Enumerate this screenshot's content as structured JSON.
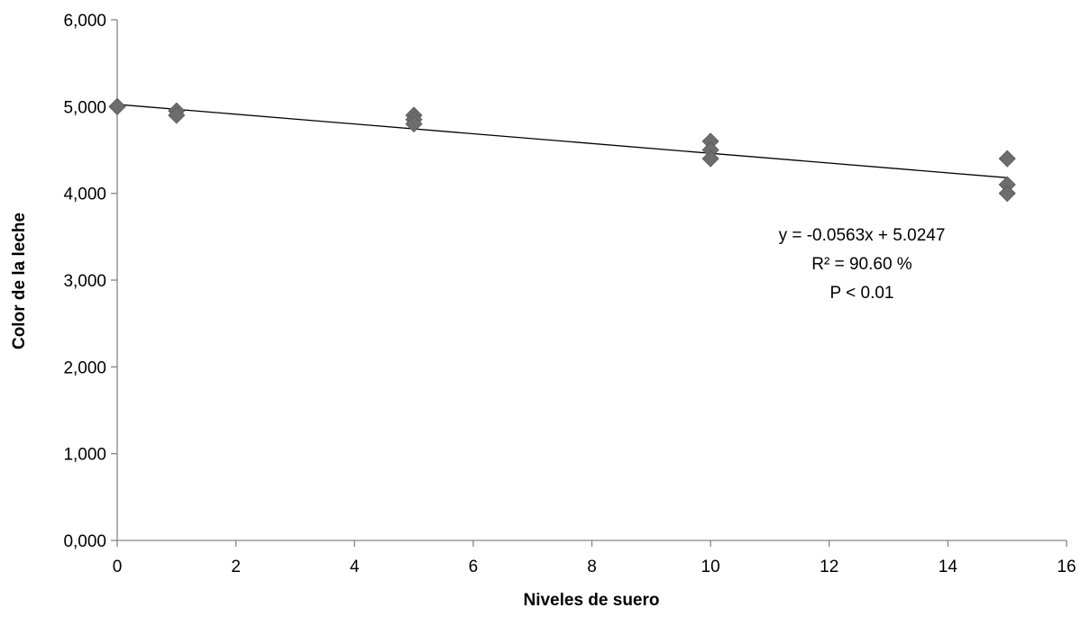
{
  "chart_data": {
    "type": "scatter",
    "xlabel": "Niveles de suero",
    "ylabel": "Color de la leche",
    "xlim": [
      0,
      16
    ],
    "ylim": [
      0,
      6
    ],
    "x_ticks": [
      "0",
      "2",
      "4",
      "6",
      "8",
      "10",
      "12",
      "14",
      "16"
    ],
    "y_ticks": [
      "0,000",
      "1,000",
      "2,000",
      "3,000",
      "4,000",
      "5,000",
      "6,000"
    ],
    "grid": false,
    "legend": "none",
    "marker_color": "#6d6d6d",
    "series": [
      {
        "points": [
          {
            "x": 0,
            "y": 5.0
          },
          {
            "x": 0,
            "y": 5.0
          },
          {
            "x": 1,
            "y": 4.95
          },
          {
            "x": 1,
            "y": 4.9
          },
          {
            "x": 5,
            "y": 4.9
          },
          {
            "x": 5,
            "y": 4.85
          },
          {
            "x": 5,
            "y": 4.8
          },
          {
            "x": 10,
            "y": 4.6
          },
          {
            "x": 10,
            "y": 4.5
          },
          {
            "x": 10,
            "y": 4.4
          },
          {
            "x": 15,
            "y": 4.4
          },
          {
            "x": 15,
            "y": 4.1
          },
          {
            "x": 15,
            "y": 4.0
          }
        ]
      }
    ],
    "trendline": {
      "slope": -0.0563,
      "intercept": 5.0247,
      "x_range": [
        0,
        15
      ]
    },
    "annotations": [
      "y = -0.0563x + 5.0247",
      "R² = 90.60 %",
      "P < 0.01"
    ]
  }
}
